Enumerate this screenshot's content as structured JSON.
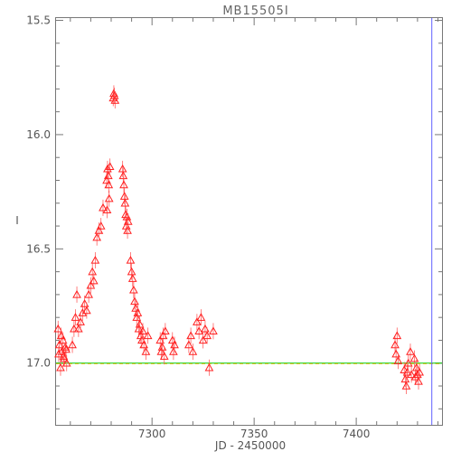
{
  "chart_data": {
    "type": "scatter",
    "title": "MB15505I",
    "xlabel": "JD - 2450000",
    "ylabel": "I",
    "xlim": [
      7253,
      7442
    ],
    "ylim": [
      17.27,
      15.49
    ],
    "y_inverted": true,
    "x_ticks": [
      7300,
      7350,
      7400
    ],
    "y_ticks": [
      15.5,
      16.0,
      16.5,
      17.0
    ],
    "x_tick_labels": [
      "7300",
      "7350",
      "7400"
    ],
    "y_tick_labels": [
      "15.5",
      "16.0",
      "16.5",
      "17.0"
    ],
    "baseline": {
      "value": 17.0,
      "color": "#00cc00",
      "dash_color": "#f0c020"
    },
    "vertical_marker": {
      "x": 7437,
      "color": "#6060ff"
    },
    "marker": "open-triangle",
    "marker_color": "#ff0000",
    "grid": false,
    "legend": "none",
    "series": [
      {
        "x": [
          7254.0,
          7254.6,
          7255.2,
          7255.8,
          7256.4,
          7257.0,
          7257.6,
          7258.2,
          7254.3,
          7255.5,
          7256.7,
          7257.9,
          7261.0,
          7261.8,
          7262.5,
          7263.2,
          7264.0,
          7265.0,
          7266.0,
          7267.0,
          7268.0,
          7269.0,
          7270.0,
          7270.8,
          7271.5,
          7272.2,
          7273.0,
          7274.0,
          7275.0,
          7276.0,
          7277.8,
          7278.2,
          7278.6,
          7279.0,
          7279.4,
          7278.0,
          7278.8,
          7281.0,
          7281.3,
          7281.6,
          7281.9,
          7285.6,
          7285.9,
          7286.2,
          7286.5,
          7286.8,
          7287.1,
          7287.4,
          7287.7,
          7288.0,
          7288.3,
          7289.5,
          7290.0,
          7290.5,
          7291.0,
          7291.5,
          7292.0,
          7292.5,
          7293.0,
          7293.5,
          7294.0,
          7294.5,
          7295.0,
          7295.5,
          7296.0,
          7297.0,
          7298.0,
          7304.0,
          7304.5,
          7305.0,
          7305.5,
          7306.0,
          7306.5,
          7310.0,
          7310.5,
          7311.0,
          7318.0,
          7319.0,
          7320.0,
          7322.0,
          7323.0,
          7324.0,
          7325.0,
          7326.0,
          7327.0,
          7328.0,
          7330.0,
          7419.0,
          7419.5,
          7420.0,
          7420.5,
          7423.5,
          7424.0,
          7424.5,
          7425.0,
          7425.5,
          7426.5,
          7427.0,
          7428.5,
          7429.0,
          7429.5,
          7430.0,
          7430.5,
          7431.0
        ],
        "y": [
          16.85,
          16.92,
          17.02,
          16.95,
          16.9,
          16.98,
          16.93,
          17.0,
          16.96,
          16.88,
          16.97,
          16.94,
          16.92,
          16.85,
          16.8,
          16.7,
          16.85,
          16.82,
          16.78,
          16.74,
          16.77,
          16.7,
          16.66,
          16.6,
          16.64,
          16.55,
          16.45,
          16.42,
          16.4,
          16.32,
          16.2,
          16.15,
          16.18,
          16.28,
          16.14,
          16.33,
          16.22,
          15.84,
          15.82,
          15.83,
          15.85,
          16.15,
          16.18,
          16.22,
          16.27,
          16.3,
          16.35,
          16.4,
          16.36,
          16.42,
          16.38,
          16.55,
          16.6,
          16.63,
          16.68,
          16.73,
          16.76,
          16.8,
          16.78,
          16.85,
          16.83,
          16.88,
          16.9,
          16.86,
          16.92,
          16.95,
          16.88,
          16.9,
          16.95,
          16.93,
          16.88,
          16.97,
          16.86,
          16.9,
          16.95,
          16.92,
          16.92,
          16.88,
          16.95,
          16.82,
          16.86,
          16.8,
          16.9,
          16.85,
          16.88,
          17.02,
          16.86,
          16.92,
          16.96,
          16.88,
          16.99,
          17.03,
          17.07,
          17.1,
          17.04,
          17.0,
          16.95,
          17.05,
          16.98,
          17.06,
          17.02,
          17.05,
          17.08,
          17.04
        ]
      }
    ]
  }
}
